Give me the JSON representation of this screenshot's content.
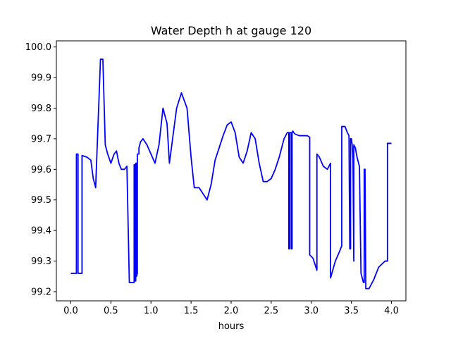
{
  "chart_data": {
    "type": "line",
    "title": "Water Depth h at gauge 120",
    "xlabel": "hours",
    "ylabel": "",
    "xlim": [
      -0.18,
      4.18
    ],
    "ylim": [
      99.17,
      100.02
    ],
    "xticks": [
      0.0,
      0.5,
      1.0,
      1.5,
      2.0,
      2.5,
      3.0,
      3.5,
      4.0
    ],
    "xtick_labels": [
      "0.0",
      "0.5",
      "1.0",
      "1.5",
      "2.0",
      "2.5",
      "3.0",
      "3.5",
      "4.0"
    ],
    "yticks": [
      99.2,
      99.3,
      99.4,
      99.5,
      99.6,
      99.7,
      99.8,
      99.9,
      100.0
    ],
    "ytick_labels": [
      "99.2",
      "99.3",
      "99.4",
      "99.5",
      "99.6",
      "99.7",
      "99.8",
      "99.9",
      "100.0"
    ],
    "grid": false,
    "series": [
      {
        "color": "#0000ff",
        "x": [
          0.0,
          0.07,
          0.07,
          0.09,
          0.09,
          0.1,
          0.1,
          0.14,
          0.14,
          0.2,
          0.25,
          0.28,
          0.31,
          0.34,
          0.37,
          0.4,
          0.43,
          0.46,
          0.5,
          0.54,
          0.57,
          0.6,
          0.63,
          0.67,
          0.7,
          0.73,
          0.74,
          0.74,
          0.79,
          0.79,
          0.8,
          0.8,
          0.81,
          0.81,
          0.82,
          0.82,
          0.83,
          0.83,
          0.85,
          0.85,
          0.87,
          0.9,
          0.95,
          1.0,
          1.05,
          1.1,
          1.15,
          1.2,
          1.23,
          1.27,
          1.32,
          1.38,
          1.45,
          1.5,
          1.54,
          1.57,
          1.6,
          1.65,
          1.7,
          1.75,
          1.8,
          1.9,
          1.95,
          2.0,
          2.05,
          2.1,
          2.15,
          2.2,
          2.25,
          2.3,
          2.35,
          2.4,
          2.45,
          2.5,
          2.55,
          2.6,
          2.66,
          2.7,
          2.72,
          2.72,
          2.73,
          2.73,
          2.75,
          2.75,
          2.76,
          2.76,
          2.77,
          2.78,
          2.8,
          2.85,
          2.9,
          2.95,
          2.98,
          2.98,
          3.02,
          3.07,
          3.07,
          3.1,
          3.15,
          3.2,
          3.24,
          3.24,
          3.3,
          3.35,
          3.38,
          3.38,
          3.42,
          3.45,
          3.47,
          3.48,
          3.49,
          3.49,
          3.5,
          3.51,
          3.52,
          3.53,
          3.53,
          3.55,
          3.57,
          3.6,
          3.62,
          3.65,
          3.66,
          3.66,
          3.67,
          3.68,
          3.72,
          3.78,
          3.84,
          3.88,
          3.92,
          3.95,
          3.95,
          4.0
        ],
        "y": [
          99.26,
          99.26,
          99.65,
          99.65,
          99.26,
          99.26,
          99.26,
          99.26,
          99.645,
          99.64,
          99.63,
          99.57,
          99.54,
          99.75,
          99.96,
          99.96,
          99.68,
          99.65,
          99.62,
          99.65,
          99.66,
          99.62,
          99.6,
          99.6,
          99.61,
          99.23,
          99.23,
          99.23,
          99.23,
          99.615,
          99.615,
          99.235,
          99.235,
          99.62,
          99.62,
          99.25,
          99.26,
          99.65,
          99.65,
          99.67,
          99.69,
          99.7,
          99.68,
          99.65,
          99.62,
          99.68,
          99.8,
          99.75,
          99.62,
          99.7,
          99.8,
          99.85,
          99.8,
          99.64,
          99.54,
          99.54,
          99.54,
          99.52,
          99.5,
          99.55,
          99.63,
          99.71,
          99.745,
          99.755,
          99.72,
          99.64,
          99.62,
          99.66,
          99.72,
          99.7,
          99.62,
          99.56,
          99.56,
          99.57,
          99.6,
          99.64,
          99.7,
          99.72,
          99.72,
          99.34,
          99.34,
          99.72,
          99.72,
          99.34,
          99.34,
          99.72,
          99.725,
          99.72,
          99.715,
          99.71,
          99.71,
          99.71,
          99.705,
          99.32,
          99.31,
          99.27,
          99.65,
          99.64,
          99.61,
          99.6,
          99.62,
          99.245,
          99.3,
          99.33,
          99.35,
          99.74,
          99.74,
          99.72,
          99.71,
          99.34,
          99.34,
          99.7,
          99.7,
          99.68,
          99.63,
          99.3,
          99.68,
          99.67,
          99.64,
          99.61,
          99.26,
          99.23,
          99.23,
          99.6,
          99.6,
          99.21,
          99.21,
          99.24,
          99.28,
          99.29,
          99.3,
          99.3,
          99.685,
          99.685
        ]
      }
    ]
  }
}
